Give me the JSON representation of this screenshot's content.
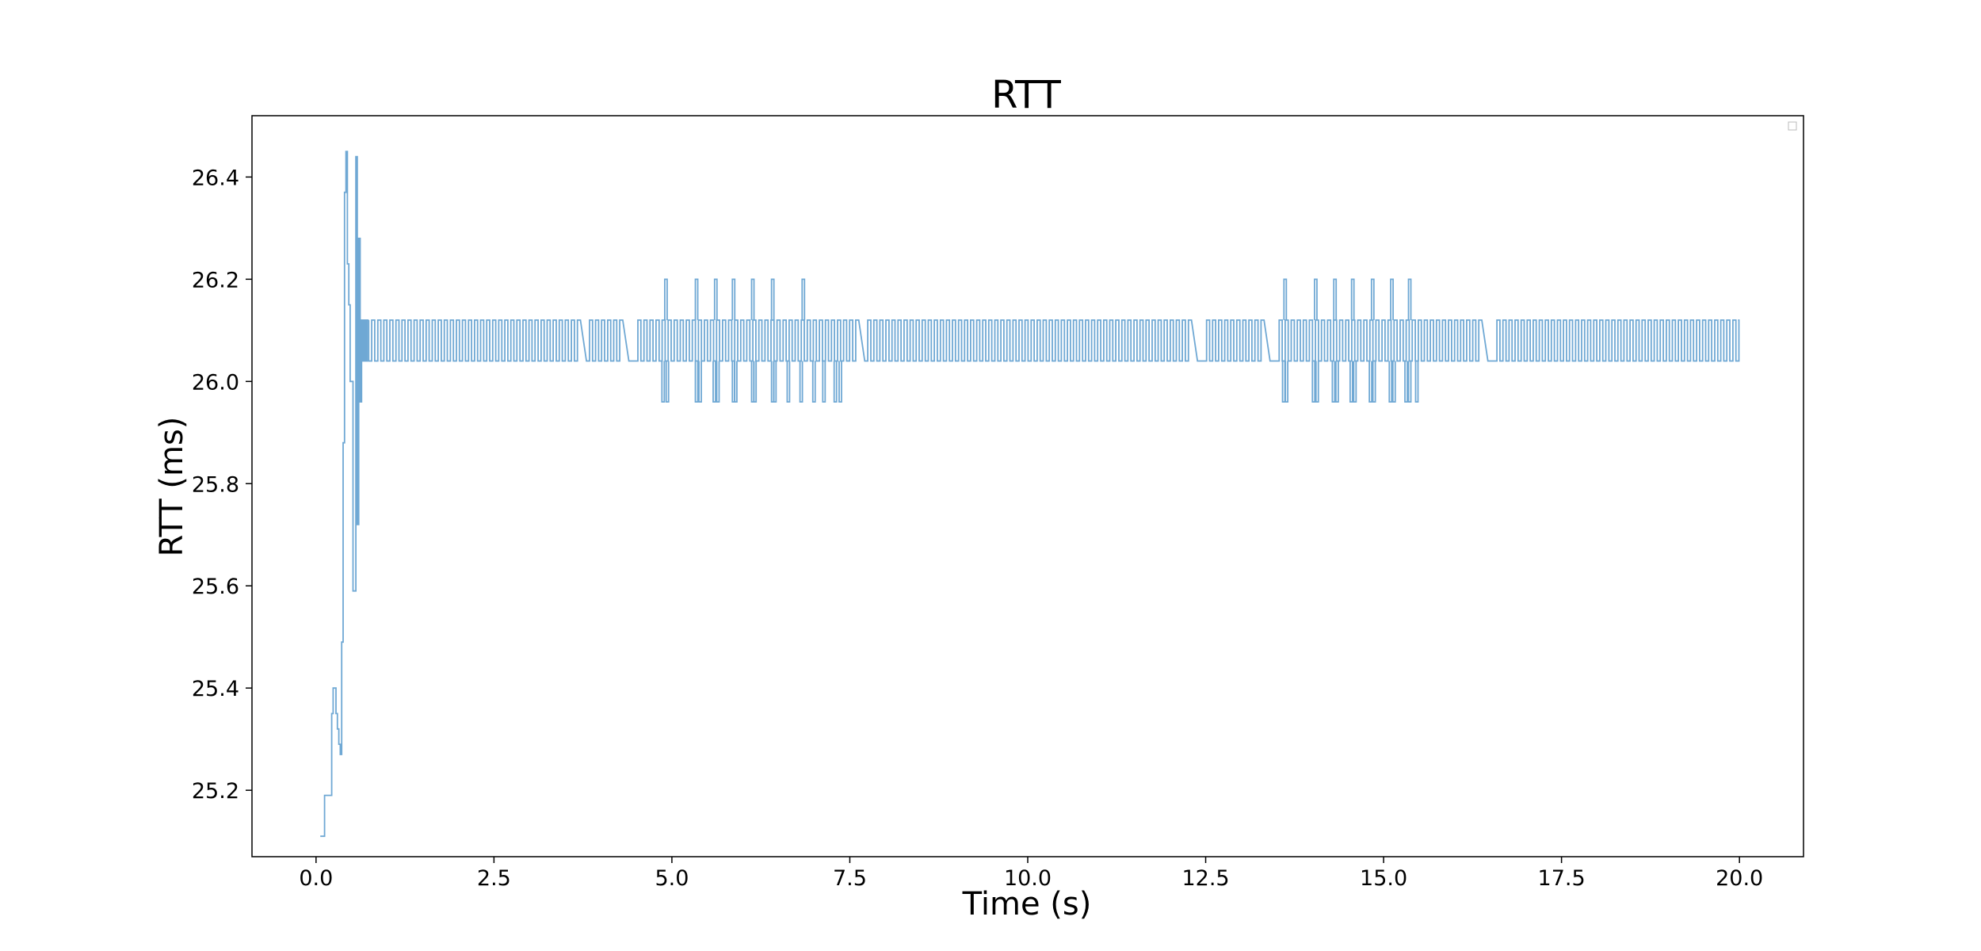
{
  "chart_data": {
    "type": "line",
    "title": "RTT",
    "xlabel": "Time (s)",
    "ylabel": "RTT (ms)",
    "xlim": [
      -0.9,
      20.9
    ],
    "ylim": [
      25.07,
      26.52
    ],
    "xticks": [
      0.0,
      2.5,
      5.0,
      7.5,
      10.0,
      12.5,
      15.0,
      17.5,
      20.0
    ],
    "xtick_labels": [
      "0.0",
      "2.5",
      "5.0",
      "7.5",
      "10.0",
      "12.5",
      "15.0",
      "17.5",
      "20.0"
    ],
    "yticks": [
      25.2,
      25.4,
      25.6,
      25.8,
      26.0,
      26.2,
      26.4
    ],
    "ytick_labels": [
      "25.2",
      "25.4",
      "25.6",
      "25.8",
      "26.0",
      "26.2",
      "26.4"
    ],
    "grid": false,
    "legend": "top-right (empty)",
    "color": "#6fa8d4",
    "series": [
      {
        "x": [
          0.06,
          0.12,
          0.12,
          0.22,
          0.22,
          0.24,
          0.24,
          0.28,
          0.28,
          0.3,
          0.3,
          0.32,
          0.32,
          0.34,
          0.34,
          0.36,
          0.36,
          0.38,
          0.38,
          0.4,
          0.4,
          0.42,
          0.42,
          0.44,
          0.44,
          0.46,
          0.46,
          0.48,
          0.48,
          0.52,
          0.52,
          0.56,
          0.56,
          0.58,
          0.58,
          0.6,
          0.6,
          0.62,
          0.62,
          0.64,
          0.64,
          0.66,
          0.66,
          0.68,
          0.68,
          0.7,
          0.7,
          0.72,
          0.72,
          0.74
        ],
        "y": [
          25.11,
          25.11,
          25.19,
          25.19,
          25.35,
          25.35,
          25.4,
          25.4,
          25.35,
          25.35,
          25.32,
          25.32,
          25.29,
          25.29,
          25.27,
          25.27,
          25.49,
          25.49,
          25.88,
          25.88,
          26.37,
          26.37,
          26.45,
          26.45,
          26.23,
          26.23,
          26.15,
          26.15,
          26.0,
          26.0,
          25.59,
          25.59,
          26.44,
          26.44,
          25.72,
          25.72,
          26.28,
          26.28,
          25.96,
          25.96,
          26.12,
          26.12,
          26.04,
          26.04,
          26.12,
          26.12,
          26.04,
          26.04,
          26.12,
          26.12
        ]
      }
    ],
    "steady": {
      "x_start": 0.74,
      "x_end": 19.98,
      "low": 26.04,
      "high": 26.12,
      "period": 0.085,
      "gaps": [
        [
          3.65,
          3.78
        ],
        [
          4.3,
          4.45
        ],
        [
          7.55,
          7.7
        ],
        [
          12.3,
          12.42
        ],
        [
          13.3,
          13.45
        ],
        [
          16.3,
          16.5
        ]
      ],
      "spikes_high": [
        4.9,
        5.33,
        5.6,
        5.85,
        6.12,
        6.4,
        6.83,
        13.6,
        14.03,
        14.3,
        14.55,
        14.83,
        15.1,
        15.35
      ],
      "spikes_low": [
        4.86,
        4.92,
        5.33,
        5.38,
        5.58,
        5.63,
        5.85,
        5.88,
        6.12,
        6.15,
        6.4,
        6.43,
        6.62,
        6.8,
        6.98,
        7.12,
        7.28,
        7.35,
        13.58,
        13.62,
        14.0,
        14.05,
        14.28,
        14.33,
        14.53,
        14.58,
        14.8,
        14.85,
        15.08,
        15.13,
        15.3,
        15.35,
        15.45
      ],
      "spike_high_value": 26.2,
      "spike_low_value": 25.96
    }
  }
}
